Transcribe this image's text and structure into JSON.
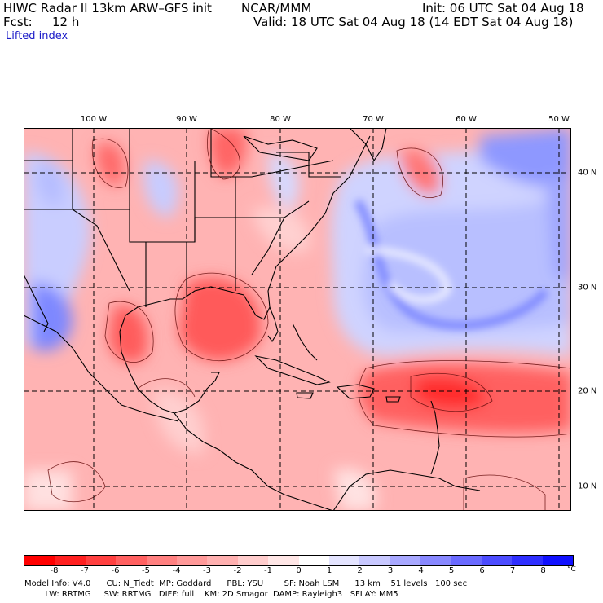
{
  "header": {
    "title": "HIWC Radar II 13km ARW–GFS init",
    "org": "NCAR/MMM",
    "init": "Init: 06 UTC Sat 04 Aug 18",
    "fcst_label": "Fcst:",
    "fcst_value": "12 h",
    "valid": "Valid: 18 UTC Sat 04 Aug 18 (14 EDT Sat 04 Aug 18)",
    "field": "Lifted index"
  },
  "map": {
    "lon_labels": [
      "100 W",
      "90 W",
      "80 W",
      "70 W",
      "60 W",
      "50 W"
    ],
    "lat_labels": [
      "40 N",
      "30 N",
      "20 N",
      "10 N"
    ]
  },
  "colorbar": {
    "colors": [
      "#ff0000",
      "#ff2020",
      "#ff4040",
      "#ff6060",
      "#ff8080",
      "#ff9999",
      "#ffb0b0",
      "#ffcccc",
      "#ffe6e6",
      "#ffffff",
      "#e4e4ff",
      "#c8c8ff",
      "#a8a8ff",
      "#8888ff",
      "#6a6aff",
      "#4c4cff",
      "#2e2eff",
      "#1010ff"
    ],
    "ticks": [
      "-8",
      "-7",
      "-6",
      "-5",
      "-4",
      "-3",
      "-2",
      "-1",
      "0",
      "1",
      "2",
      "3",
      "4",
      "5",
      "6",
      "7",
      "8"
    ],
    "unit": "°C"
  },
  "footer": {
    "line1": "Model Info: V4.0      CU: N_Tiedt  MP: Goddard      PBL: YSU        SF: Noah LSM      13 km    51 levels   100 sec",
    "line2": "        LW: RRTMG     SW: RRTMG   DIFF: full    KM: 2D Smagor  DAMP: Rayleigh3   SFLAY: MM5"
  }
}
